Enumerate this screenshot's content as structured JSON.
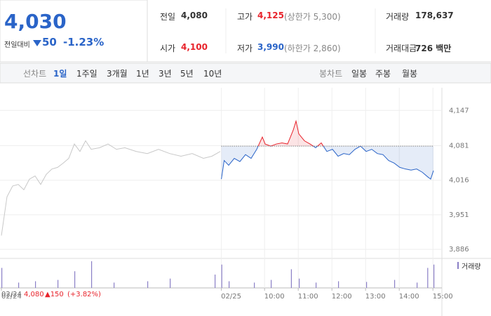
{
  "header": {
    "price": "4,030",
    "change_label": "전일대비",
    "change": "50",
    "rate": "-1.23%",
    "stats": [
      {
        "label": "전일",
        "value": "4,080"
      },
      {
        "label": "고가",
        "value": "4,125",
        "note": "(상한가 5,300)"
      },
      {
        "label": "거래량",
        "value": "178,637"
      },
      {
        "label": "시가",
        "value": "4,100"
      },
      {
        "label": "저가",
        "value": "3,990",
        "note": "(하한가 2,860)"
      },
      {
        "label": "거래대금",
        "value": "726 백만"
      }
    ]
  },
  "tabs": {
    "line_label": "선차트",
    "line": [
      "1일",
      "1주일",
      "3개월",
      "1년",
      "3년",
      "5년",
      "10년"
    ],
    "candle_label": "봉차트",
    "candle": [
      "일봉",
      "주봉",
      "월봉"
    ]
  },
  "chart_data": {
    "type": "line",
    "xlim": [
      0,
      785
    ],
    "ylim": [
      3873,
      4183
    ],
    "yticks": [
      {
        "value": 4147,
        "label": "4,147"
      },
      {
        "value": 4081,
        "label": "4,081"
      },
      {
        "value": 4016,
        "label": "4,016"
      },
      {
        "value": 3951,
        "label": "3,951"
      },
      {
        "value": 3886,
        "label": "3,886"
      }
    ],
    "xticks": [
      {
        "value": 0,
        "label": "02/24"
      },
      {
        "value": 392,
        "label": "02/25"
      },
      {
        "value": 469,
        "label": "10:00"
      },
      {
        "value": 529,
        "label": "11:00"
      },
      {
        "value": 589,
        "label": "12:00"
      },
      {
        "value": 649,
        "label": "13:00"
      },
      {
        "value": 709,
        "label": "14:00"
      },
      {
        "value": 769,
        "label": "15:00"
      }
    ],
    "prev_close": 4080,
    "series": [
      {
        "color": "#c8c8c8",
        "x": [
          0,
          10,
          20,
          30,
          40,
          50,
          60,
          70,
          80,
          90,
          100,
          110,
          120,
          130,
          140,
          150,
          160,
          175,
          190,
          205,
          220,
          240,
          260,
          280,
          300,
          320,
          340,
          360,
          375,
          390
        ],
        "values": [
          3912,
          3985,
          4005,
          4008,
          3998,
          4018,
          4024,
          4008,
          4027,
          4037,
          4040,
          4048,
          4057,
          4084,
          4070,
          4090,
          4074,
          4077,
          4084,
          4074,
          4077,
          4070,
          4066,
          4074,
          4066,
          4061,
          4066,
          4057,
          4061,
          4070
        ]
      },
      {
        "color_up": "#e8232b",
        "color_down": "#2a64c8",
        "x": [
          392,
          397,
          405,
          415,
          425,
          435,
          445,
          455,
          465,
          470,
          480,
          490,
          500,
          510,
          520,
          525,
          530,
          540,
          550,
          560,
          570,
          580,
          590,
          600,
          610,
          620,
          630,
          640,
          650,
          660,
          670,
          680,
          690,
          700,
          710,
          720,
          730,
          740,
          750,
          760,
          765,
          770
        ],
        "values": [
          4018,
          4053,
          4044,
          4057,
          4051,
          4064,
          4057,
          4074,
          4097,
          4084,
          4080,
          4084,
          4086,
          4084,
          4110,
          4127,
          4103,
          4090,
          4084,
          4077,
          4086,
          4070,
          4074,
          4061,
          4066,
          4064,
          4074,
          4080,
          4070,
          4074,
          4066,
          4064,
          4053,
          4048,
          4040,
          4037,
          4035,
          4037,
          4031,
          4022,
          4018,
          4034
        ]
      }
    ],
    "volume": {
      "name": "거래량",
      "color": "#8a7fc6",
      "x": [
        0,
        30,
        60,
        100,
        130,
        160,
        200,
        260,
        300,
        380,
        392,
        405,
        450,
        480,
        516,
        530,
        560,
        600,
        650,
        700,
        740,
        759,
        770
      ],
      "values": [
        30,
        8,
        10,
        12,
        25,
        40,
        8,
        10,
        14,
        20,
        35,
        10,
        8,
        12,
        28,
        14,
        8,
        10,
        9,
        12,
        8,
        30,
        35
      ]
    },
    "hover": {
      "date": "02/24",
      "price": "4,080",
      "change": "▲150",
      "rate": "(+3.82%)"
    }
  }
}
